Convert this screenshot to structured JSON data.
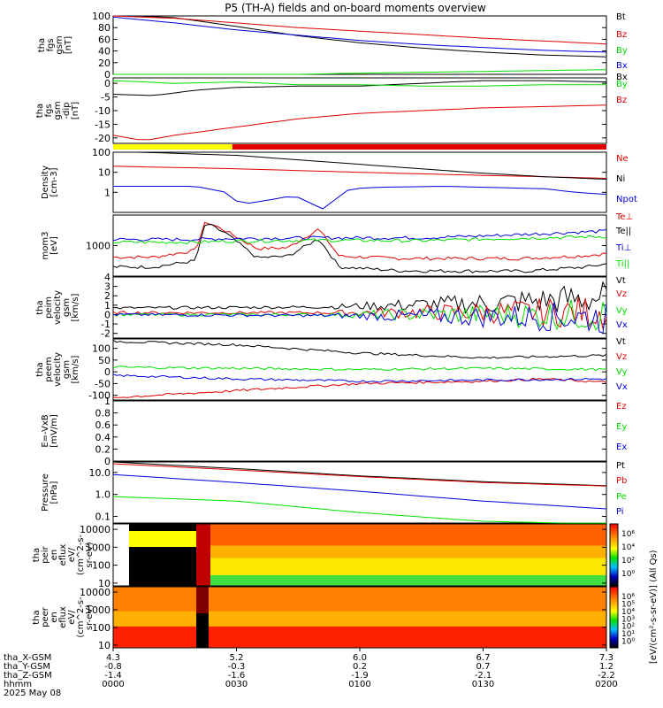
{
  "title": "P5 (TH-A) fields and on-board moments overview",
  "colors": {
    "black": "#000000",
    "red": "#e00000",
    "green": "#00e000",
    "blue": "#0000e0",
    "yellow": "#ffff00"
  },
  "chart_data": [
    {
      "type": "line",
      "name": "fgs_gsm",
      "ylabel": [
        "tha",
        "fgs",
        "gsm",
        "[nT]"
      ],
      "ylim": [
        0,
        100
      ],
      "yticks": [
        0,
        20,
        40,
        60,
        80,
        100
      ],
      "legend": [
        "Bt",
        "Bz",
        "By",
        "Bx"
      ],
      "series": [
        {
          "name": "Bt",
          "color": "black",
          "points": [
            [
              0,
              102
            ],
            [
              30,
              97
            ],
            [
              60,
              82
            ],
            [
              90,
              66
            ],
            [
              120,
              54
            ],
            [
              150,
              45
            ],
            [
              180,
              38
            ],
            [
              210,
              33
            ],
            [
              240,
              30
            ]
          ]
        },
        {
          "name": "Bz",
          "color": "red",
          "points": [
            [
              0,
              100
            ],
            [
              30,
              96
            ],
            [
              60,
              88
            ],
            [
              90,
              80
            ],
            [
              120,
              74
            ],
            [
              150,
              68
            ],
            [
              180,
              62
            ],
            [
              210,
              57
            ],
            [
              240,
              52
            ]
          ]
        },
        {
          "name": "By",
          "color": "green",
          "points": [
            [
              0,
              -5
            ],
            [
              60,
              -2
            ],
            [
              120,
              2
            ],
            [
              180,
              5
            ],
            [
              240,
              8
            ]
          ]
        },
        {
          "name": "Bx",
          "color": "blue",
          "points": [
            [
              0,
              98
            ],
            [
              30,
              88
            ],
            [
              60,
              76
            ],
            [
              90,
              67
            ],
            [
              120,
              58
            ],
            [
              150,
              51
            ],
            [
              180,
              46
            ],
            [
              210,
              41
            ],
            [
              240,
              38
            ]
          ]
        }
      ]
    },
    {
      "type": "line",
      "name": "fgs_gsm_dip",
      "ylabel": [
        "tha",
        "fgs",
        "gsm",
        "-dip",
        "[nT]"
      ],
      "ylim": [
        -22,
        2
      ],
      "yticks": [
        0,
        -5,
        -10,
        -15,
        -20
      ],
      "legend": [
        "Bx",
        "By",
        "Bz"
      ],
      "series": [
        {
          "name": "Bx",
          "color": "black",
          "points": [
            [
              0,
              -4
            ],
            [
              20,
              -4.5
            ],
            [
              40,
              -2.5
            ],
            [
              60,
              -1.5
            ],
            [
              90,
              -1
            ],
            [
              120,
              -1
            ],
            [
              150,
              0
            ],
            [
              180,
              1
            ],
            [
              210,
              1
            ],
            [
              240,
              0.5
            ]
          ]
        },
        {
          "name": "By",
          "color": "green",
          "points": [
            [
              0,
              1
            ],
            [
              30,
              0
            ],
            [
              60,
              0.5
            ],
            [
              90,
              -0.5
            ],
            [
              120,
              -0.5
            ],
            [
              150,
              -1
            ],
            [
              180,
              -1
            ],
            [
              210,
              -0.5
            ],
            [
              240,
              -0.5
            ]
          ]
        },
        {
          "name": "Bz",
          "color": "red",
          "points": [
            [
              0,
              -19
            ],
            [
              15,
              -21
            ],
            [
              30,
              -19
            ],
            [
              60,
              -16
            ],
            [
              90,
              -13
            ],
            [
              120,
              -11
            ],
            [
              150,
              -10
            ],
            [
              180,
              -9
            ],
            [
              210,
              -8.5
            ],
            [
              240,
              -8
            ]
          ]
        }
      ]
    },
    {
      "type": "line",
      "name": "density",
      "ylabel": [
        "Density",
        "[cm-3]"
      ],
      "ylim": [
        0.1,
        100
      ],
      "ylog": true,
      "yticks": [
        1,
        10,
        100
      ],
      "legend": [
        "Ne",
        "Ni",
        "Npot"
      ],
      "series": [
        {
          "name": "Ne",
          "color": "red",
          "points": [
            [
              0,
              20
            ],
            [
              60,
              15
            ],
            [
              120,
              10
            ],
            [
              180,
              7
            ],
            [
              210,
              6
            ],
            [
              240,
              5
            ]
          ]
        },
        {
          "name": "Ni",
          "color": "black",
          "points": [
            [
              0,
              110
            ],
            [
              60,
              70
            ],
            [
              120,
              25
            ],
            [
              180,
              9
            ],
            [
              210,
              6
            ],
            [
              240,
              4.5
            ]
          ]
        },
        {
          "name": "Npot",
          "color": "blue",
          "points": [
            [
              0,
              2
            ],
            [
              40,
              2
            ],
            [
              55,
              1
            ],
            [
              62,
              0.25
            ],
            [
              75,
              0.4
            ],
            [
              88,
              0.7
            ],
            [
              102,
              0.15
            ],
            [
              115,
              1.5
            ],
            [
              130,
              1.8
            ],
            [
              160,
              2
            ],
            [
              190,
              1.7
            ],
            [
              210,
              1.5
            ],
            [
              225,
              1
            ],
            [
              240,
              0.8
            ]
          ]
        }
      ]
    },
    {
      "type": "line",
      "name": "temperature",
      "ylabel": [
        "mom3",
        "[eV]"
      ],
      "ylim": [
        100,
        10000
      ],
      "ylog": true,
      "yticks": [
        1000
      ],
      "legend": [
        "Te⊥",
        "Te||",
        "Ti⊥",
        "Ti||"
      ],
      "series": [
        {
          "name": "Te⊥",
          "color": "red",
          "points": [
            [
              0,
              420
            ],
            [
              20,
              420
            ],
            [
              40,
              700
            ],
            [
              45,
              6200
            ],
            [
              55,
              3000
            ],
            [
              70,
              800
            ],
            [
              85,
              850
            ],
            [
              100,
              3500
            ],
            [
              110,
              450
            ],
            [
              140,
              380
            ],
            [
              200,
              380
            ],
            [
              230,
              470
            ],
            [
              240,
              550
            ]
          ]
        },
        {
          "name": "Te||",
          "color": "black",
          "points": [
            [
              0,
              200
            ],
            [
              20,
              200
            ],
            [
              40,
              320
            ],
            [
              45,
              5500
            ],
            [
              55,
              2500
            ],
            [
              70,
              400
            ],
            [
              85,
              450
            ],
            [
              100,
              1700
            ],
            [
              110,
              200
            ],
            [
              140,
              150
            ],
            [
              200,
              145
            ],
            [
              230,
              200
            ],
            [
              240,
              250
            ]
          ]
        },
        {
          "name": "Ti⊥",
          "color": "blue",
          "points": [
            [
              0,
              1600
            ],
            [
              40,
              1600
            ],
            [
              55,
              1700
            ],
            [
              100,
              1800
            ],
            [
              150,
              1800
            ],
            [
              190,
              2200
            ],
            [
              240,
              3000
            ]
          ]
        },
        {
          "name": "Ti||",
          "color": "green",
          "points": [
            [
              0,
              1300
            ],
            [
              40,
              1300
            ],
            [
              55,
              1400
            ],
            [
              100,
              1500
            ],
            [
              150,
              1450
            ],
            [
              190,
              1700
            ],
            [
              240,
              2000
            ]
          ]
        }
      ]
    },
    {
      "type": "line",
      "name": "peim_velocity",
      "ylabel": [
        "tha",
        "peim",
        "velocity",
        "gsm",
        "[km/s]"
      ],
      "ylim": [
        -2.5,
        4
      ],
      "yticks": [
        4,
        3,
        2,
        1,
        0,
        -1,
        -2
      ],
      "legend": [
        "Vt",
        "Vz",
        "Vy",
        "Vx"
      ],
      "series": [
        {
          "name": "Vt",
          "color": "black",
          "points": [
            [
              0,
              0.7
            ],
            [
              100,
              0.8
            ],
            [
              180,
              1.2
            ],
            [
              240,
              1.8
            ]
          ]
        },
        {
          "name": "Vz",
          "color": "red",
          "points": [
            [
              0,
              0.2
            ],
            [
              100,
              0.2
            ],
            [
              240,
              0.3
            ]
          ]
        },
        {
          "name": "Vy",
          "color": "green",
          "points": [
            [
              0,
              0
            ],
            [
              100,
              0
            ],
            [
              240,
              0
            ]
          ]
        },
        {
          "name": "Vx",
          "color": "blue",
          "points": [
            [
              0,
              0
            ],
            [
              100,
              -0.1
            ],
            [
              240,
              -0.3
            ]
          ]
        }
      ]
    },
    {
      "type": "line",
      "name": "peem_velocity",
      "ylabel": [
        "tha",
        "peem",
        "velocity",
        "gsm",
        "[km/s]"
      ],
      "ylim": [
        -120,
        140
      ],
      "yticks": [
        100,
        50,
        0,
        -50,
        -100
      ],
      "legend": [
        "Vt",
        "Vz",
        "Vy",
        "Vx"
      ],
      "series": [
        {
          "name": "Vt",
          "color": "black",
          "points": [
            [
              0,
              130
            ],
            [
              60,
              115
            ],
            [
              120,
              80
            ],
            [
              180,
              60
            ],
            [
              240,
              70
            ]
          ]
        },
        {
          "name": "Vz",
          "color": "red",
          "points": [
            [
              0,
              -110
            ],
            [
              60,
              -80
            ],
            [
              120,
              -50
            ],
            [
              180,
              -40
            ],
            [
              210,
              -30
            ],
            [
              240,
              -45
            ]
          ]
        },
        {
          "name": "Vy",
          "color": "green",
          "points": [
            [
              0,
              20
            ],
            [
              60,
              15
            ],
            [
              120,
              10
            ],
            [
              180,
              15
            ],
            [
              240,
              10
            ]
          ]
        },
        {
          "name": "Vx",
          "color": "blue",
          "points": [
            [
              0,
              -15
            ],
            [
              60,
              -30
            ],
            [
              120,
              -40
            ],
            [
              180,
              -35
            ],
            [
              240,
              -30
            ]
          ]
        }
      ]
    },
    {
      "type": "line",
      "name": "efield",
      "ylabel": [
        "E=-VxB",
        "[mV/m]"
      ],
      "ylim": [
        0,
        1
      ],
      "yticks": [
        1,
        0.8,
        0.6,
        0.4,
        0.2,
        0
      ],
      "legend": [
        "Ez",
        "Ey",
        "Ex"
      ],
      "series": []
    },
    {
      "type": "line",
      "name": "pressure",
      "ylabel": [
        "Pressure",
        "[nPa]"
      ],
      "ylim": [
        0.05,
        30
      ],
      "ylog": true,
      "yticks": [
        10,
        1,
        0.1
      ],
      "yticklabels": [
        "10.0",
        "1.0",
        "0.1"
      ],
      "legend": [
        "Pt",
        "Pb",
        "Pe",
        "Pi"
      ],
      "series": [
        {
          "name": "Pt",
          "color": "black",
          "points": [
            [
              0,
              30
            ],
            [
              60,
              15
            ],
            [
              120,
              7
            ],
            [
              180,
              3.8
            ],
            [
              240,
              2.5
            ]
          ]
        },
        {
          "name": "Pb",
          "color": "red",
          "points": [
            [
              0,
              25
            ],
            [
              60,
              13
            ],
            [
              120,
              6.5
            ],
            [
              180,
              3.5
            ],
            [
              240,
              2.4
            ]
          ]
        },
        {
          "name": "Pe",
          "color": "green",
          "points": [
            [
              0,
              0.8
            ],
            [
              60,
              0.5
            ],
            [
              120,
              0.15
            ],
            [
              180,
              0.06
            ],
            [
              240,
              0.045
            ]
          ]
        },
        {
          "name": "Pi",
          "color": "blue",
          "points": [
            [
              0,
              8
            ],
            [
              60,
              3.5
            ],
            [
              120,
              1.4
            ],
            [
              180,
              0.5
            ],
            [
              240,
              0.22
            ]
          ]
        }
      ]
    },
    {
      "type": "heatmap",
      "name": "peir_eflux",
      "ylabel": [
        "tha",
        "peir",
        "en",
        "eflux",
        "eV/",
        "(cm^2-s-",
        "sr-eV)"
      ],
      "ylim": [
        7,
        20000
      ],
      "ylog": true,
      "yticks": [
        10,
        100,
        1000,
        10000
      ],
      "yticklabels": [
        "10",
        "100",
        "1000",
        "10000"
      ]
    },
    {
      "type": "heatmap",
      "name": "peer_eflux",
      "ylabel": [
        "tha",
        "peer",
        "en",
        "eflux",
        "eV/",
        "(cm^2-s-",
        "sr-eV)"
      ],
      "ylim": [
        7,
        20000
      ],
      "ylog": true,
      "yticks": [
        10,
        100,
        1000,
        10000
      ],
      "yticklabels": [
        "10",
        "100",
        "1000",
        "10000"
      ]
    }
  ],
  "colorbar": {
    "ticks": [
      "10⁶",
      "10⁴",
      "10²",
      "10⁰"
    ],
    "ticks2": [
      "10⁶",
      "10⁵",
      "10⁴",
      "10³",
      "10²",
      "10¹",
      "10⁰"
    ],
    "label": "[eV/(cm²-s-sr-eV)] (All Qs)"
  },
  "status_bar": {
    "yellow_end_min": 29
  },
  "x_axis": {
    "row_labels": [
      "tha_X-GSM",
      "tha_Y-GSM",
      "tha_Z-GSM",
      "hhmm",
      "2025 May 08"
    ],
    "ticks": [
      {
        "t": 0,
        "vals": [
          "4.3",
          "-0.8",
          "-1.4",
          "0000"
        ]
      },
      {
        "t": 30,
        "vals": [
          "5.2",
          "-0.3",
          "-1.6",
          "0030"
        ]
      },
      {
        "t": 60,
        "vals": [
          "6.0",
          "0.2",
          "-1.9",
          "0100"
        ]
      },
      {
        "t": 90,
        "vals": [
          "6.7",
          "0.7",
          "-2.1",
          "0130"
        ]
      },
      {
        "t": 120,
        "vals": [
          "7.3",
          "1.2",
          "-2.2",
          "0200"
        ]
      }
    ]
  }
}
